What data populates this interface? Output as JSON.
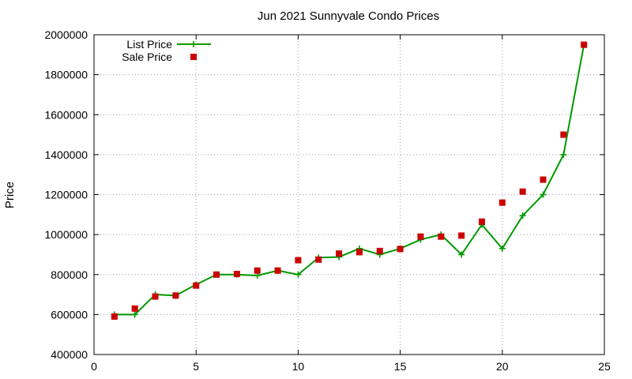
{
  "chart_data": {
    "type": "line",
    "title": "Jun 2021 Sunnyvale Condo Prices",
    "xlabel": "",
    "ylabel": "Price",
    "xlim": [
      0,
      25
    ],
    "ylim": [
      400000,
      2000000
    ],
    "x_ticks": [
      0,
      5,
      10,
      15,
      20,
      25
    ],
    "y_ticks": [
      400000,
      600000,
      800000,
      1000000,
      1200000,
      1400000,
      1600000,
      1800000,
      2000000
    ],
    "grid": true,
    "legend_position": "top-left",
    "x": [
      1,
      2,
      3,
      4,
      5,
      6,
      7,
      8,
      9,
      10,
      11,
      12,
      13,
      14,
      15,
      16,
      17,
      18,
      19,
      20,
      21,
      22,
      23,
      24
    ],
    "series": [
      {
        "name": "List Price",
        "color": "#009900",
        "style": "line-plus",
        "values": [
          600000,
          600000,
          700000,
          695000,
          750000,
          800000,
          800000,
          795000,
          820000,
          800000,
          885000,
          888000,
          930000,
          900000,
          930000,
          975000,
          1000000,
          900000,
          1050000,
          930000,
          1095000,
          1200000,
          1400000,
          1950000
        ]
      },
      {
        "name": "Sale Price",
        "color": "#cc0000",
        "style": "square",
        "values": [
          590000,
          630000,
          690000,
          695000,
          745000,
          800000,
          803000,
          820000,
          820000,
          872000,
          875000,
          905000,
          912000,
          918000,
          928000,
          990000,
          990000,
          995000,
          1065000,
          1160000,
          1215000,
          1275000,
          1500000,
          1950000
        ]
      }
    ]
  }
}
